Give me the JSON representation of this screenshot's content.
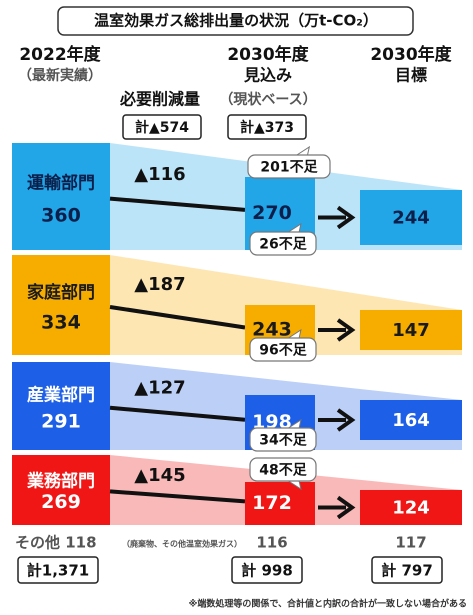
{
  "title": "温室効果ガス総排出量の状況（万t-CO₂）",
  "headers": {
    "actual_year": "2022年度",
    "actual_note": "（最新実績）",
    "reduction": "必要削減量",
    "projection_year": "2030年度",
    "projection_label": "見込み",
    "projection_note": "（現状ベース）",
    "target_year": "2030年度",
    "target_label": "目標"
  },
  "totals": {
    "reduction": "計▲574",
    "projection_reduction": "計▲373",
    "shortfall": "201不足"
  },
  "sectors": [
    {
      "name": "運輸部門",
      "actual": "360",
      "reduction": "▲116",
      "projection": "270",
      "target": "244",
      "shortfall": "26不足",
      "color": "#22a6e8",
      "text_color": "#0b1f4a"
    },
    {
      "name": "家庭部門",
      "actual": "334",
      "reduction": "▲187",
      "projection": "243",
      "target": "147",
      "shortfall": "96不足",
      "color": "#f7ad00",
      "text_color": "#1a1a1a"
    },
    {
      "name": "産業部門",
      "actual": "291",
      "reduction": "▲127",
      "projection": "198",
      "target": "164",
      "shortfall": "34不足",
      "color": "#1d5fe6",
      "text_color": "#ffffff"
    },
    {
      "name": "業務部門",
      "actual": "269",
      "reduction": "▲145",
      "projection": "172",
      "target": "124",
      "shortfall": "48不足",
      "color": "#f01616",
      "text_color": "#ffffff"
    }
  ],
  "other": {
    "label": "その他 118",
    "note": "（廃棄物、その他温室効果ガス）",
    "projection": "116",
    "target": "117"
  },
  "grand_totals": {
    "actual": "計1,371",
    "projection": "計 998",
    "target": "計 797"
  },
  "footnote": "※端数処理等の関係で、合計値と内訳の合計が一致しない場合がある"
}
